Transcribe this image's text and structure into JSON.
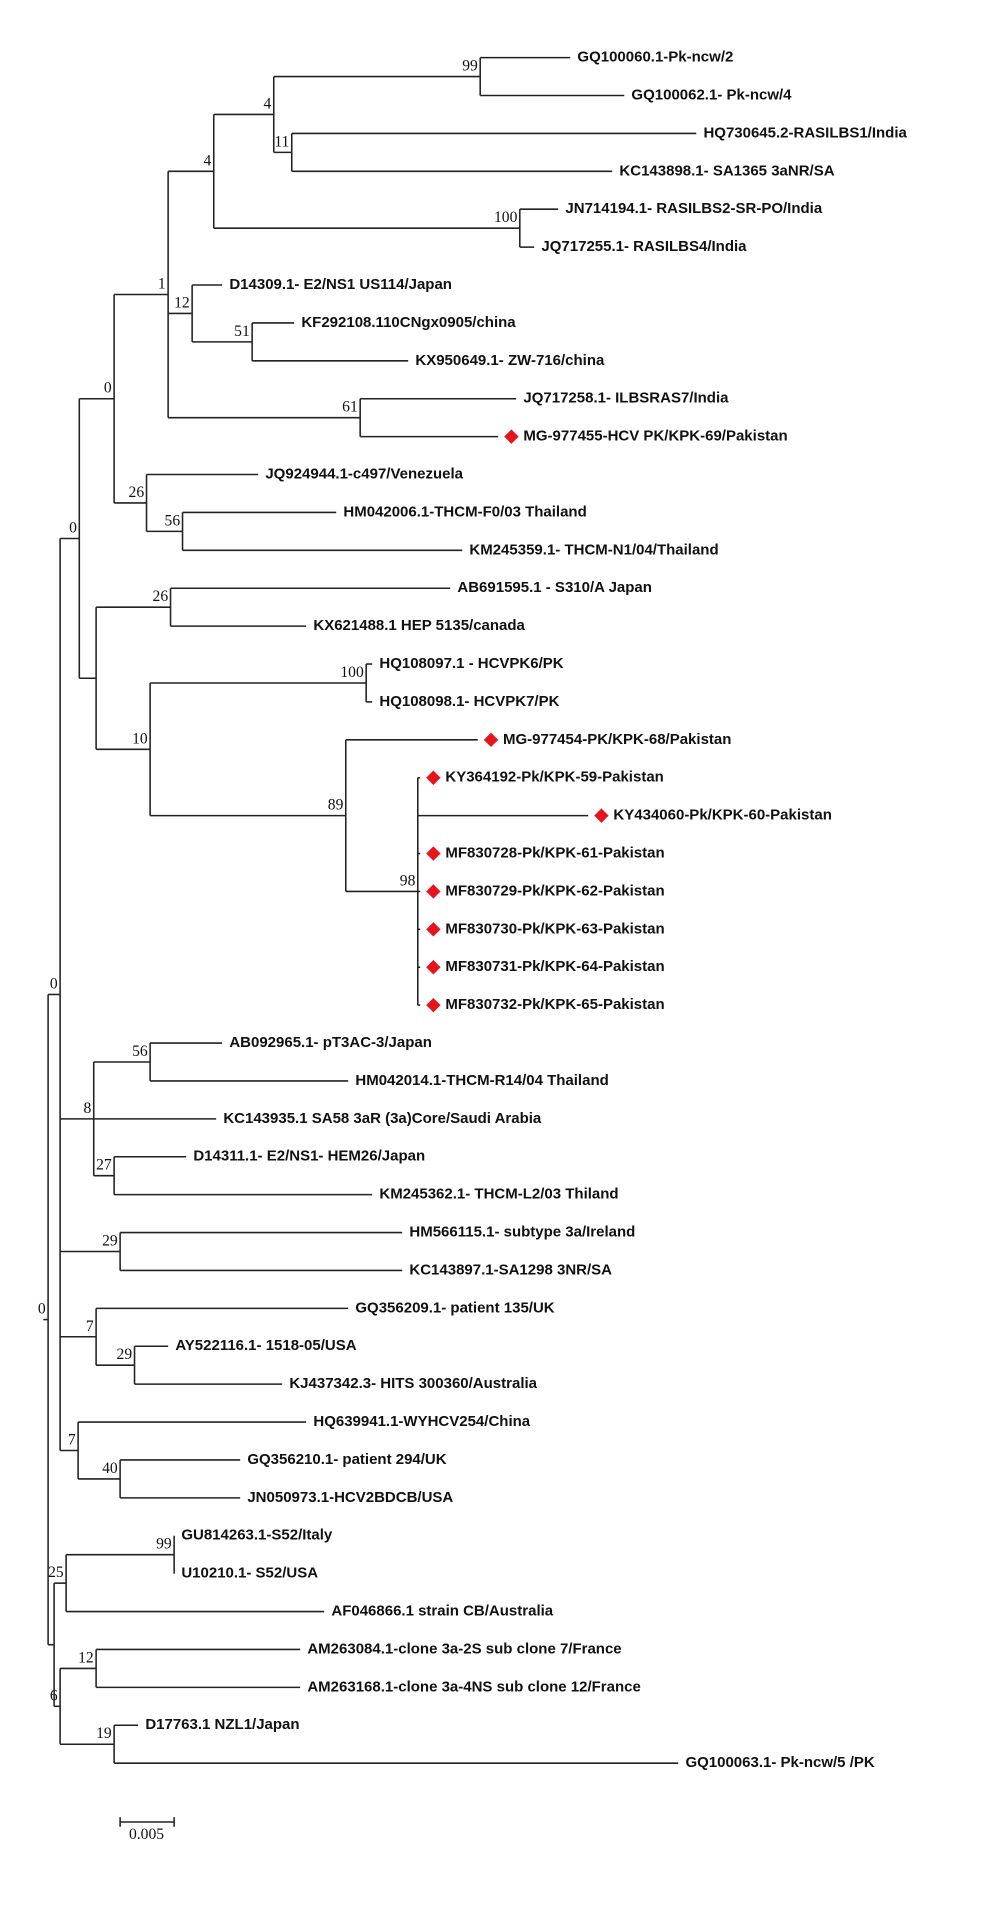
{
  "leaves": [
    {
      "label": "GQ100060.1-Pk-ncw/2",
      "marked": false
    },
    {
      "label": "GQ100062.1- Pk-ncw/4",
      "marked": false
    },
    {
      "label": "HQ730645.2-RASILBS1/India",
      "marked": false
    },
    {
      "label": "KC143898.1- SA1365 3aNR/SA",
      "marked": false
    },
    {
      "label": "JN714194.1- RASILBS2-SR-PO/India",
      "marked": false
    },
    {
      "label": "JQ717255.1- RASILBS4/India",
      "marked": false
    },
    {
      "label": "D14309.1- E2/NS1 US114/Japan",
      "marked": false
    },
    {
      "label": "KF292108.110CNgx0905/china",
      "marked": false
    },
    {
      "label": "KX950649.1- ZW-716/china",
      "marked": false
    },
    {
      "label": "JQ717258.1- ILBSRAS7/India",
      "marked": false
    },
    {
      "label": "MG-977455-HCV PK/KPK-69/Pakistan",
      "marked": true
    },
    {
      "label": "JQ924944.1-c497/Venezuela",
      "marked": false
    },
    {
      "label": "HM042006.1-THCM-F0/03 Thailand",
      "marked": false
    },
    {
      "label": "KM245359.1- THCM-N1/04/Thailand",
      "marked": false
    },
    {
      "label": "AB691595.1 - S310/A Japan",
      "marked": false
    },
    {
      "label": "KX621488.1 HEP 5135/canada",
      "marked": false
    },
    {
      "label": "HQ108097.1 - HCVPK6/PK",
      "marked": false
    },
    {
      "label": "HQ108098.1- HCVPK7/PK",
      "marked": false
    },
    {
      "label": "MG-977454-PK/KPK-68/Pakistan",
      "marked": true
    },
    {
      "label": "KY364192-Pk/KPK-59-Pakistan",
      "marked": true
    },
    {
      "label": "KY434060-Pk/KPK-60-Pakistan",
      "marked": true
    },
    {
      "label": "MF830728-Pk/KPK-61-Pakistan",
      "marked": true
    },
    {
      "label": "MF830729-Pk/KPK-62-Pakistan",
      "marked": true
    },
    {
      "label": "MF830730-Pk/KPK-63-Pakistan",
      "marked": true
    },
    {
      "label": "MF830731-Pk/KPK-64-Pakistan",
      "marked": true
    },
    {
      "label": "MF830732-Pk/KPK-65-Pakistan",
      "marked": true
    },
    {
      "label": "AB092965.1- pT3AC-3/Japan",
      "marked": false
    },
    {
      "label": "HM042014.1-THCM-R14/04 Thailand",
      "marked": false
    },
    {
      "label": "KC143935.1 SA58 3aR (3a)Core/Saudi Arabia",
      "marked": false
    },
    {
      "label": "D14311.1- E2/NS1- HEM26/Japan",
      "marked": false
    },
    {
      "label": "KM245362.1- THCM-L2/03 Thiland",
      "marked": false
    },
    {
      "label": "HM566115.1- subtype 3a/Ireland",
      "marked": false
    },
    {
      "label": "KC143897.1-SA1298 3NR/SA",
      "marked": false
    },
    {
      "label": "GQ356209.1- patient 135/UK",
      "marked": false
    },
    {
      "label": "AY522116.1- 1518-05/USA",
      "marked": false
    },
    {
      "label": "KJ437342.3- HITS 300360/Australia",
      "marked": false
    },
    {
      "label": "HQ639941.1-WYHCV254/China",
      "marked": false
    },
    {
      "label": "GQ356210.1- patient 294/UK",
      "marked": false
    },
    {
      "label": "JN050973.1-HCV2BDCB/USA",
      "marked": false
    },
    {
      "label": "GU814263.1-S52/Italy",
      "marked": false
    },
    {
      "label": "U10210.1- S52/USA",
      "marked": false
    },
    {
      "label": "AF046866.1 strain CB/Australia",
      "marked": false
    },
    {
      "label": "AM263084.1-clone 3a-2S sub clone 7/France",
      "marked": false
    },
    {
      "label": "AM263168.1-clone 3a-4NS sub clone 12/France",
      "marked": false
    },
    {
      "label": "D17763.1 NZL1/Japan",
      "marked": false
    },
    {
      "label": "GQ100063.1- Pk-ncw/5 /PK",
      "marked": false
    }
  ],
  "support": [
    "99",
    "4",
    "4",
    "11",
    "100",
    "1",
    "12",
    "51",
    "61",
    "0",
    "26",
    "56",
    "0",
    "26",
    "100",
    "10",
    "89",
    "98",
    "0",
    "0",
    "56",
    "8",
    "27",
    "29",
    "7",
    "29",
    "7",
    "40",
    "99",
    "25",
    "12",
    "6",
    "19"
  ],
  "scale_bar": "0.005"
}
